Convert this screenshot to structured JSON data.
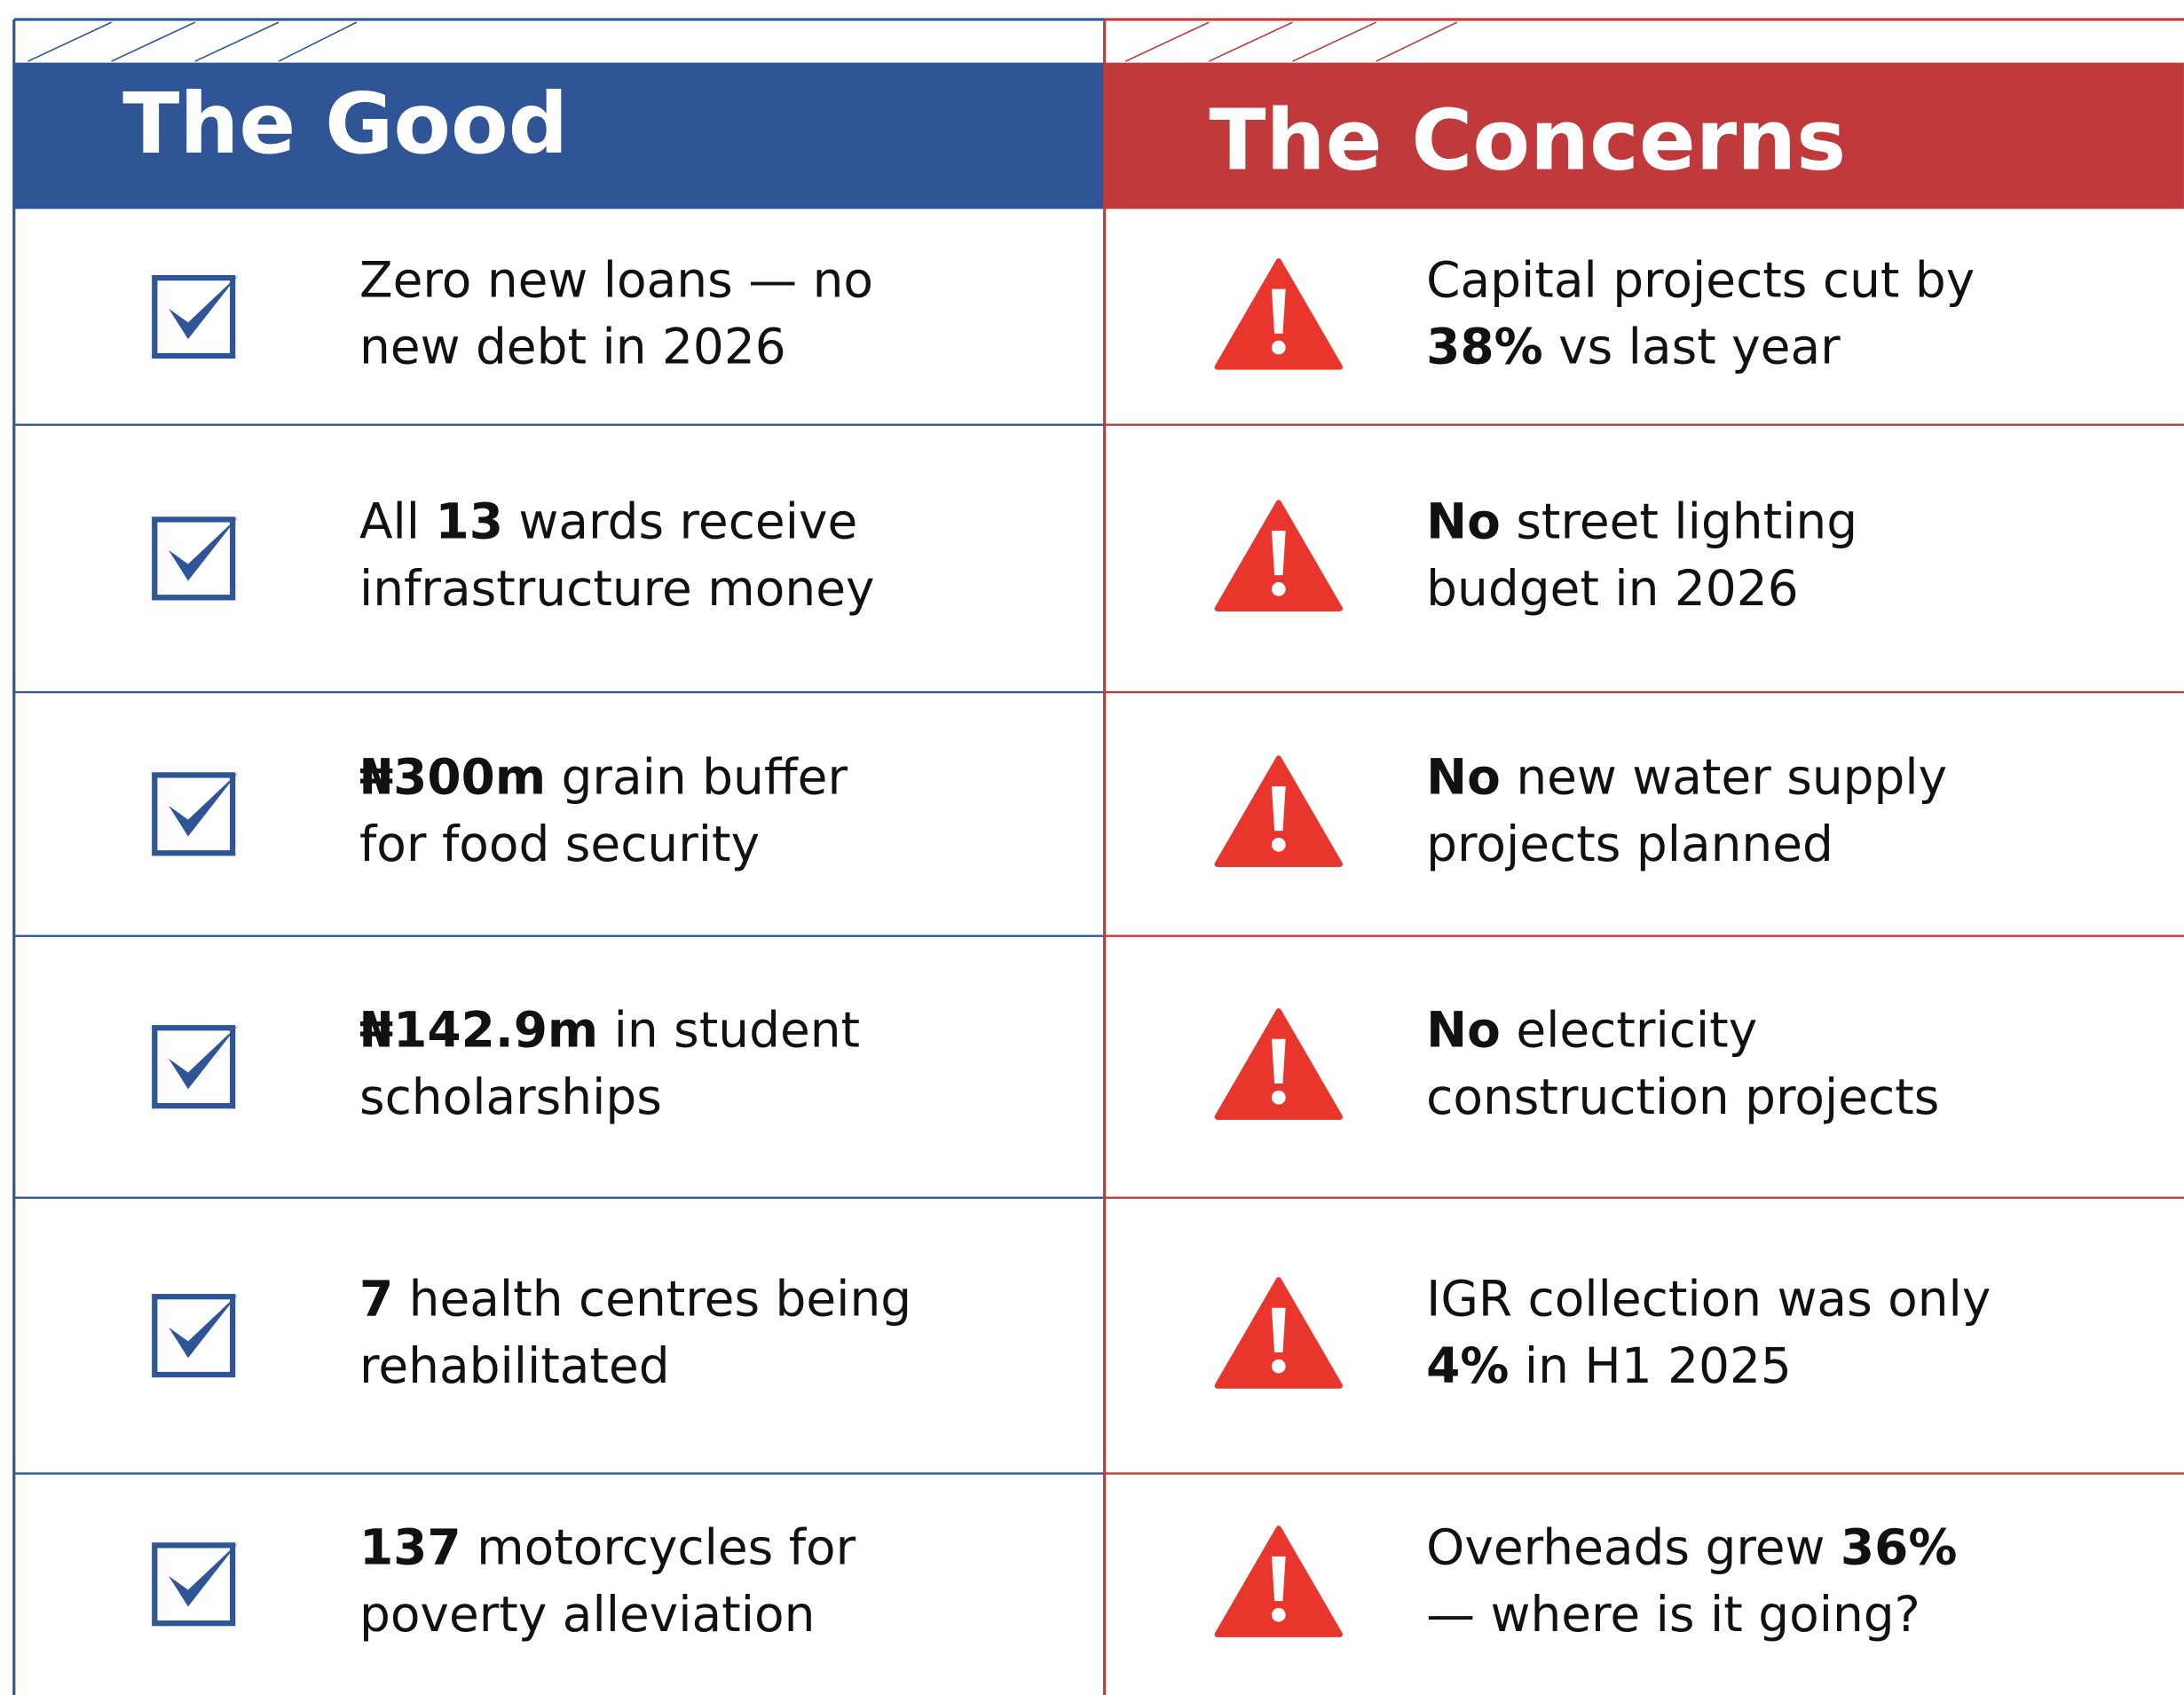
{
  "columns": [
    {
      "title": "The Good",
      "color": "#2f5597",
      "icon": "check",
      "icon_color": "#2f5597",
      "items": [
        {
          "lines": [
            [
              {
                "text": "Zero new loans — no"
              }
            ],
            [
              {
                "text": "new debt in 2026"
              }
            ]
          ]
        },
        {
          "lines": [
            [
              {
                "text": "All "
              },
              {
                "text": "13",
                "bold": true
              },
              {
                "text": " wards receive"
              }
            ],
            [
              {
                "text": "infrastructure money"
              }
            ]
          ]
        },
        {
          "lines": [
            [
              {
                "text": "₦300m",
                "bold": true
              },
              {
                "text": " grain buffer"
              }
            ],
            [
              {
                "text": "for food security"
              }
            ]
          ]
        },
        {
          "lines": [
            [
              {
                "text": "₦142.9m",
                "bold": true
              },
              {
                "text": " in student"
              }
            ],
            [
              {
                "text": "scholarships"
              }
            ]
          ]
        },
        {
          "lines": [
            [
              {
                "text": "7",
                "bold": true
              },
              {
                "text": " health centres being"
              }
            ],
            [
              {
                "text": "rehabilitated"
              }
            ]
          ]
        },
        {
          "lines": [
            [
              {
                "text": "137",
                "bold": true
              },
              {
                "text": " motorcycles for"
              }
            ],
            [
              {
                "text": "poverty alleviation"
              }
            ]
          ]
        }
      ]
    },
    {
      "title": "The Concerns",
      "color": "#c0393b",
      "icon": "warning",
      "icon_color": "#e8362c",
      "items": [
        {
          "lines": [
            [
              {
                "text": "Capital projects cut by"
              }
            ],
            [
              {
                "text": "38%",
                "bold": true
              },
              {
                "text": " vs last year"
              }
            ]
          ]
        },
        {
          "lines": [
            [
              {
                "text": "No",
                "bold": true
              },
              {
                "text": " street lighting"
              }
            ],
            [
              {
                "text": "budget in 2026"
              }
            ]
          ]
        },
        {
          "lines": [
            [
              {
                "text": "No",
                "bold": true
              },
              {
                "text": " new water supply"
              }
            ],
            [
              {
                "text": "projects planned"
              }
            ]
          ]
        },
        {
          "lines": [
            [
              {
                "text": "No",
                "bold": true
              },
              {
                "text": " electricity"
              }
            ],
            [
              {
                "text": "construction projects"
              }
            ]
          ]
        },
        {
          "lines": [
            [
              {
                "text": "IGR collection was only"
              }
            ],
            [
              {
                "text": "4%",
                "bold": true
              },
              {
                "text": " in H1 2025"
              }
            ]
          ]
        },
        {
          "lines": [
            [
              {
                "text": "Overheads grew "
              },
              {
                "text": "36%",
                "bold": true
              }
            ],
            [
              {
                "text": "— where is it going?"
              }
            ]
          ]
        }
      ]
    }
  ]
}
